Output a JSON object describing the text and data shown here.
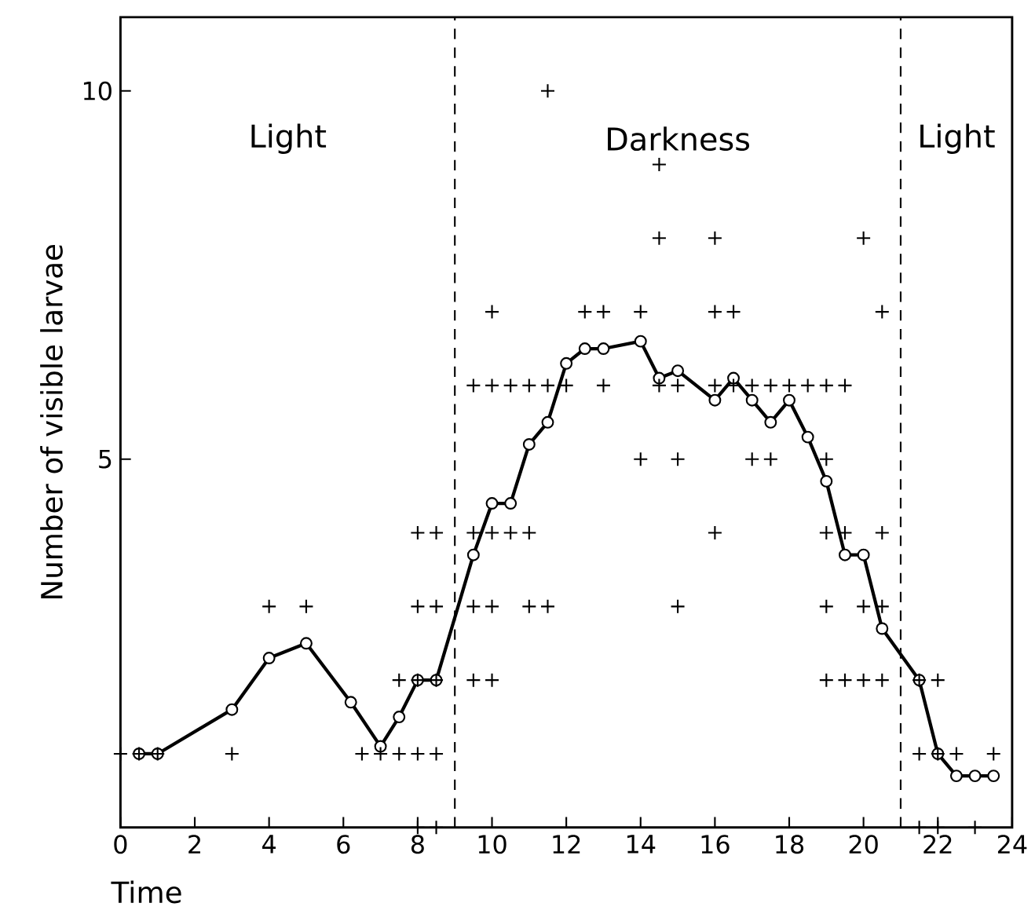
{
  "chart_data": {
    "type": "scatter",
    "xlabel": "Time",
    "ylabel": "Number of visible larvae",
    "xlim": [
      0,
      24
    ],
    "ylim": [
      0,
      11
    ],
    "xticks": [
      0,
      2,
      4,
      6,
      8,
      10,
      12,
      14,
      16,
      18,
      20,
      22,
      24
    ],
    "yticks": [
      5,
      10
    ],
    "series": [
      {
        "type": "line",
        "color": "#000000",
        "marker": "circle",
        "line_style": "solid",
        "x": [
          0.5,
          1,
          3,
          4,
          5,
          6.2,
          7,
          7.5,
          8,
          8.5,
          9.5,
          10,
          10.5,
          11,
          11.5,
          12,
          12.5,
          13,
          14,
          14.5,
          15,
          16,
          16.5,
          17,
          17.5,
          18,
          18.5,
          19,
          19.5,
          20,
          20.5,
          21.5,
          22,
          22.5,
          23,
          23.5
        ],
        "values": [
          1,
          1,
          1.6,
          2.3,
          2.5,
          1.7,
          1.1,
          1.5,
          2,
          2,
          3.7,
          4.4,
          4.4,
          5.2,
          5.5,
          6.3,
          6.5,
          6.5,
          6.6,
          6.1,
          6.2,
          5.8,
          6.1,
          5.8,
          5.5,
          5.8,
          5.3,
          4.7,
          3.7,
          3.7,
          2.7,
          2,
          1,
          0.7,
          0.7,
          0.7
        ]
      },
      {
        "color": "#000000",
        "marker": "cross",
        "x": [
          8,
          8.5,
          21.5,
          22,
          23,
          0,
          0.5,
          1,
          3,
          6.5,
          7,
          7.5,
          8,
          8.5,
          21.5,
          22,
          22.5,
          23.5,
          7.5,
          8,
          8.5,
          9.5,
          10,
          19,
          19.5,
          20,
          20.5,
          21.5,
          22,
          4,
          5,
          8,
          8.5,
          9.5,
          10,
          11,
          11.5,
          15,
          19,
          20,
          20.5,
          8,
          8.5,
          9.5,
          10,
          10.5,
          11,
          16,
          19,
          19.5,
          20.5,
          14,
          15,
          17,
          17.5,
          19,
          9.5,
          10,
          10.5,
          11,
          11.5,
          12,
          13,
          14.5,
          15,
          16,
          16.5,
          17,
          17.5,
          18,
          18.5,
          19,
          19.5,
          10,
          12.5,
          13,
          14,
          16,
          16.5,
          20.5,
          14.5,
          16,
          20,
          14.5,
          11.5
        ],
        "values": [
          0,
          0,
          0,
          0,
          0,
          1,
          1,
          1,
          1,
          1,
          1,
          1,
          1,
          1,
          1,
          1,
          1,
          1,
          2,
          2,
          2,
          2,
          2,
          2,
          2,
          2,
          2,
          2,
          2,
          3,
          3,
          3,
          3,
          3,
          3,
          3,
          3,
          3,
          3,
          3,
          3,
          4,
          4,
          4,
          4,
          4,
          4,
          4,
          4,
          4,
          4,
          5,
          5,
          5,
          5,
          5,
          6,
          6,
          6,
          6,
          6,
          6,
          6,
          6,
          6,
          6,
          6,
          6,
          6,
          6,
          6,
          6,
          6,
          7,
          7,
          7,
          7,
          7,
          7,
          7,
          8,
          8,
          8,
          9,
          10
        ]
      }
    ],
    "ref_lines": [
      {
        "axis": "x",
        "value": 9,
        "line_style": "dashed"
      },
      {
        "axis": "x",
        "value": 21,
        "line_style": "dashed"
      }
    ],
    "annotations": [
      "Light",
      "Darkness",
      "Light"
    ]
  }
}
